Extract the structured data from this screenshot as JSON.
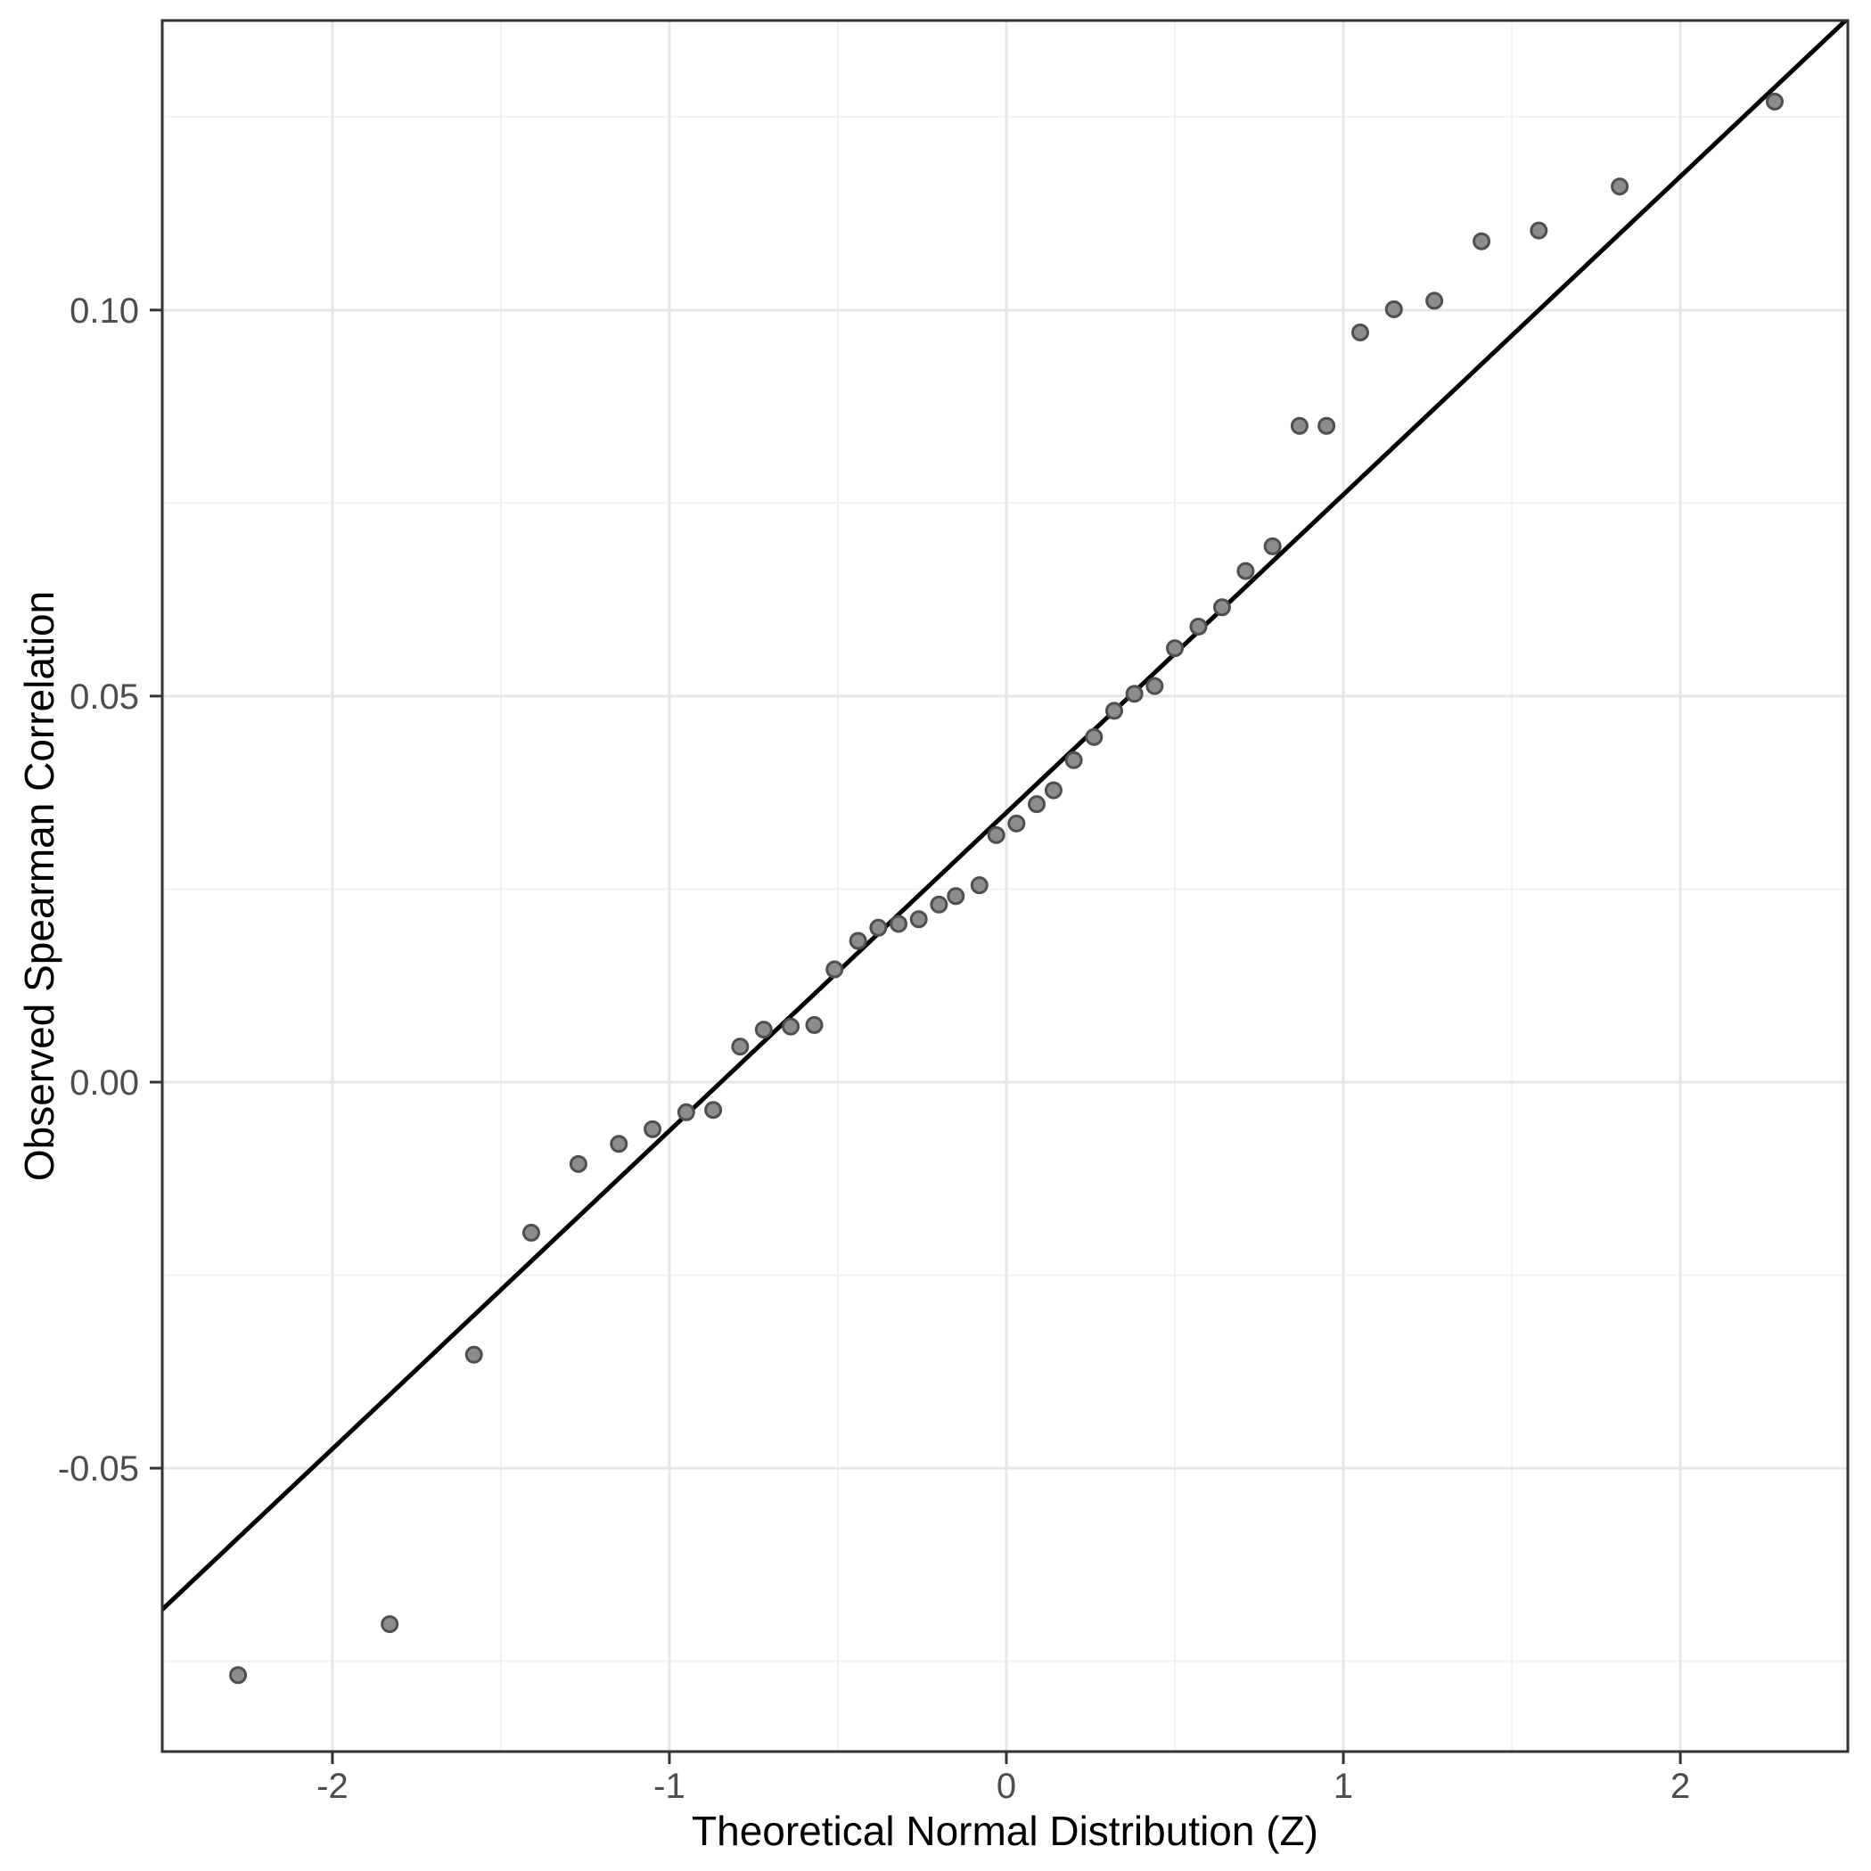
{
  "figure": {
    "background": "#ffffff",
    "panel_border_color": "#333333",
    "grid_major_color": "#e6e6e6",
    "grid_minor_color": "#f2f2f2",
    "tick_color": "#333333",
    "tick_label_color": "#4d4d4d",
    "title_color": "#000000"
  },
  "chart_data": {
    "type": "scatter",
    "title": "",
    "xlabel": "Theoretical Normal Distribution (Z)",
    "ylabel": "Observed Spearman Correlation",
    "x_range": [
      -2.505,
      2.497
    ],
    "y_range": [
      -0.0867,
      0.1375
    ],
    "grid": "on",
    "legend": "none",
    "x_ticks": [
      {
        "value": -2,
        "label": "-2"
      },
      {
        "value": -1,
        "label": "-1"
      },
      {
        "value": 0,
        "label": "0"
      },
      {
        "value": 1,
        "label": "1"
      },
      {
        "value": 2,
        "label": "2"
      }
    ],
    "y_ticks": [
      {
        "value": 0.1,
        "label": "0.10"
      },
      {
        "value": 0.05,
        "label": "0.05"
      },
      {
        "value": 0.0,
        "label": "0.00"
      },
      {
        "value": -0.05,
        "label": "-0.05"
      }
    ],
    "x_minor": [
      -2.5,
      -1.5,
      -0.5,
      0.5,
      1.5,
      2.5
    ],
    "y_minor": [
      0.125,
      0.075,
      0.025,
      -0.025,
      -0.075
    ],
    "reference_line": {
      "slope": 0.0412,
      "intercept": 0.0349,
      "color": "#000000",
      "width": 5
    },
    "point_style": {
      "fill": "#8c8c8c",
      "stroke": "#4f4f4f",
      "stroke_width": 3,
      "radius": 8.5
    },
    "points": [
      {
        "z": -2.28,
        "r": -0.0768
      },
      {
        "z": -1.83,
        "r": -0.0702
      },
      {
        "z": -1.58,
        "r": -0.0353
      },
      {
        "z": -1.41,
        "r": -0.0195
      },
      {
        "z": -1.27,
        "r": -0.0106
      },
      {
        "z": -1.15,
        "r": -0.008
      },
      {
        "z": -1.05,
        "r": -0.0061
      },
      {
        "z": -0.95,
        "r": -0.0039
      },
      {
        "z": -0.87,
        "r": -0.0036
      },
      {
        "z": -0.79,
        "r": 0.0046
      },
      {
        "z": -0.72,
        "r": 0.0068
      },
      {
        "z": -0.64,
        "r": 0.0072
      },
      {
        "z": -0.57,
        "r": 0.0074
      },
      {
        "z": -0.51,
        "r": 0.0146
      },
      {
        "z": -0.44,
        "r": 0.0183
      },
      {
        "z": -0.38,
        "r": 0.02
      },
      {
        "z": -0.32,
        "r": 0.0205
      },
      {
        "z": -0.26,
        "r": 0.0211
      },
      {
        "z": -0.2,
        "r": 0.023
      },
      {
        "z": -0.15,
        "r": 0.0241
      },
      {
        "z": -0.08,
        "r": 0.0255
      },
      {
        "z": -0.03,
        "r": 0.032
      },
      {
        "z": 0.03,
        "r": 0.0335
      },
      {
        "z": 0.09,
        "r": 0.036
      },
      {
        "z": 0.14,
        "r": 0.0378
      },
      {
        "z": 0.2,
        "r": 0.0417
      },
      {
        "z": 0.26,
        "r": 0.0447
      },
      {
        "z": 0.32,
        "r": 0.0481
      },
      {
        "z": 0.38,
        "r": 0.0503
      },
      {
        "z": 0.44,
        "r": 0.0513
      },
      {
        "z": 0.5,
        "r": 0.0562
      },
      {
        "z": 0.57,
        "r": 0.059
      },
      {
        "z": 0.64,
        "r": 0.0615
      },
      {
        "z": 0.71,
        "r": 0.0662
      },
      {
        "z": 0.79,
        "r": 0.0694
      },
      {
        "z": 0.87,
        "r": 0.085
      },
      {
        "z": 0.95,
        "r": 0.085
      },
      {
        "z": 1.05,
        "r": 0.0971
      },
      {
        "z": 1.15,
        "r": 0.1001
      },
      {
        "z": 1.27,
        "r": 0.1012
      },
      {
        "z": 1.41,
        "r": 0.1089
      },
      {
        "z": 1.58,
        "r": 0.1103
      },
      {
        "z": 1.82,
        "r": 0.116
      },
      {
        "z": 2.28,
        "r": 0.127
      }
    ]
  }
}
